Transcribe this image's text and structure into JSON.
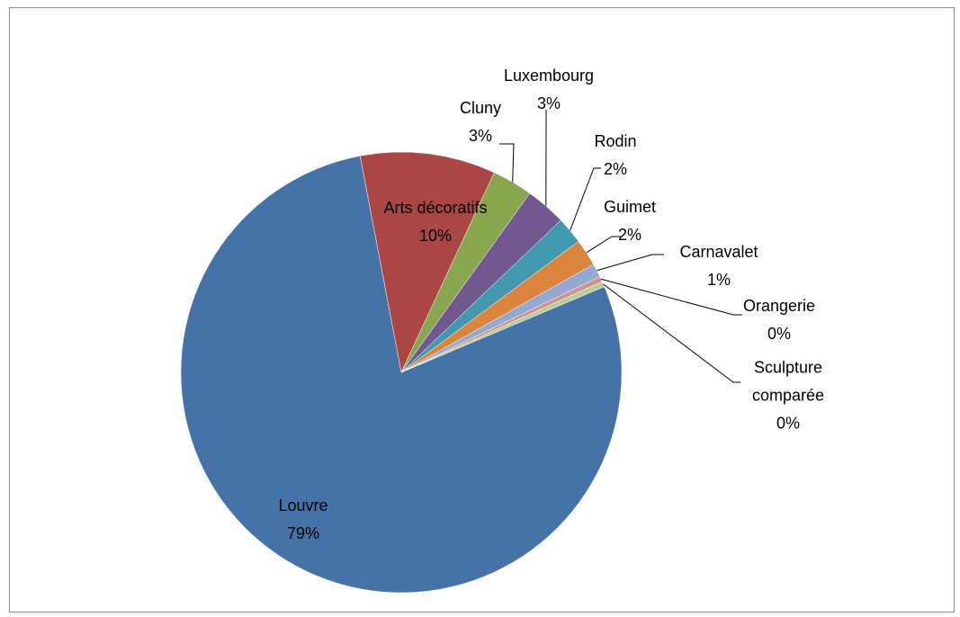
{
  "chart_data": {
    "type": "pie",
    "categories": [
      "Louvre",
      "Arts décoratifs",
      "Cluny",
      "Luxembourg",
      "Rodin",
      "Guimet",
      "Carnavalet",
      "Orangerie",
      "Sculpture comparée"
    ],
    "values": [
      79,
      10,
      3,
      3,
      2,
      2,
      1,
      0.4,
      0.4
    ],
    "value_labels": [
      "79%",
      "10%",
      "3%",
      "3%",
      "2%",
      "2%",
      "1%",
      "0%",
      "0%"
    ],
    "colors": [
      "#4572a7",
      "#aa4643",
      "#89a54e",
      "#71588f",
      "#4198af",
      "#db843d",
      "#93a9cf",
      "#d19392",
      "#b9cd96"
    ]
  }
}
